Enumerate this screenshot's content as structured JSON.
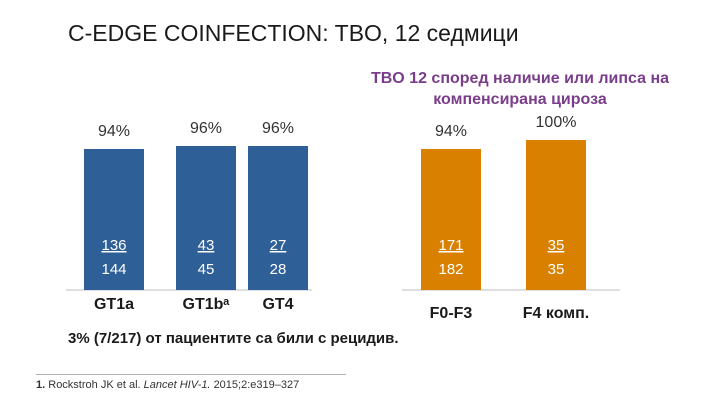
{
  "title": "C-EDGE COINFECTION: TBO, 12 седмици",
  "note": "3% (7/217) от пациентите са били с рецидив.",
  "reference": {
    "number": "1.",
    "authors": "Rockstroh JK et al.",
    "journal": "Lancet HIV-1.",
    "citation": "2015;2:e319–327"
  },
  "colors": {
    "blue": "#2e5f96",
    "orange": "#d98000",
    "subtitle": "#7a3d8a"
  },
  "chart_data": [
    {
      "type": "bar",
      "title": "",
      "categories": [
        "GT1a",
        "GT1bᵃ",
        "GT4"
      ],
      "values": [
        94,
        96,
        96
      ],
      "value_labels": [
        "94%",
        "96%",
        "96%"
      ],
      "fractions": [
        [
          "136",
          "144"
        ],
        [
          "43",
          "45"
        ],
        [
          "27",
          "28"
        ]
      ],
      "ylim": [
        0,
        100
      ],
      "color": "#2e5f96"
    },
    {
      "type": "bar",
      "title": "TBO 12 според наличие или липса на компенсирана цироза",
      "categories": [
        "F0-F3",
        "F4 комп."
      ],
      "values": [
        94,
        100
      ],
      "value_labels": [
        "94%",
        "100%"
      ],
      "fractions": [
        [
          "171",
          "182"
        ],
        [
          "35",
          "35"
        ]
      ],
      "ylim": [
        0,
        100
      ],
      "color": "#d98000"
    }
  ]
}
